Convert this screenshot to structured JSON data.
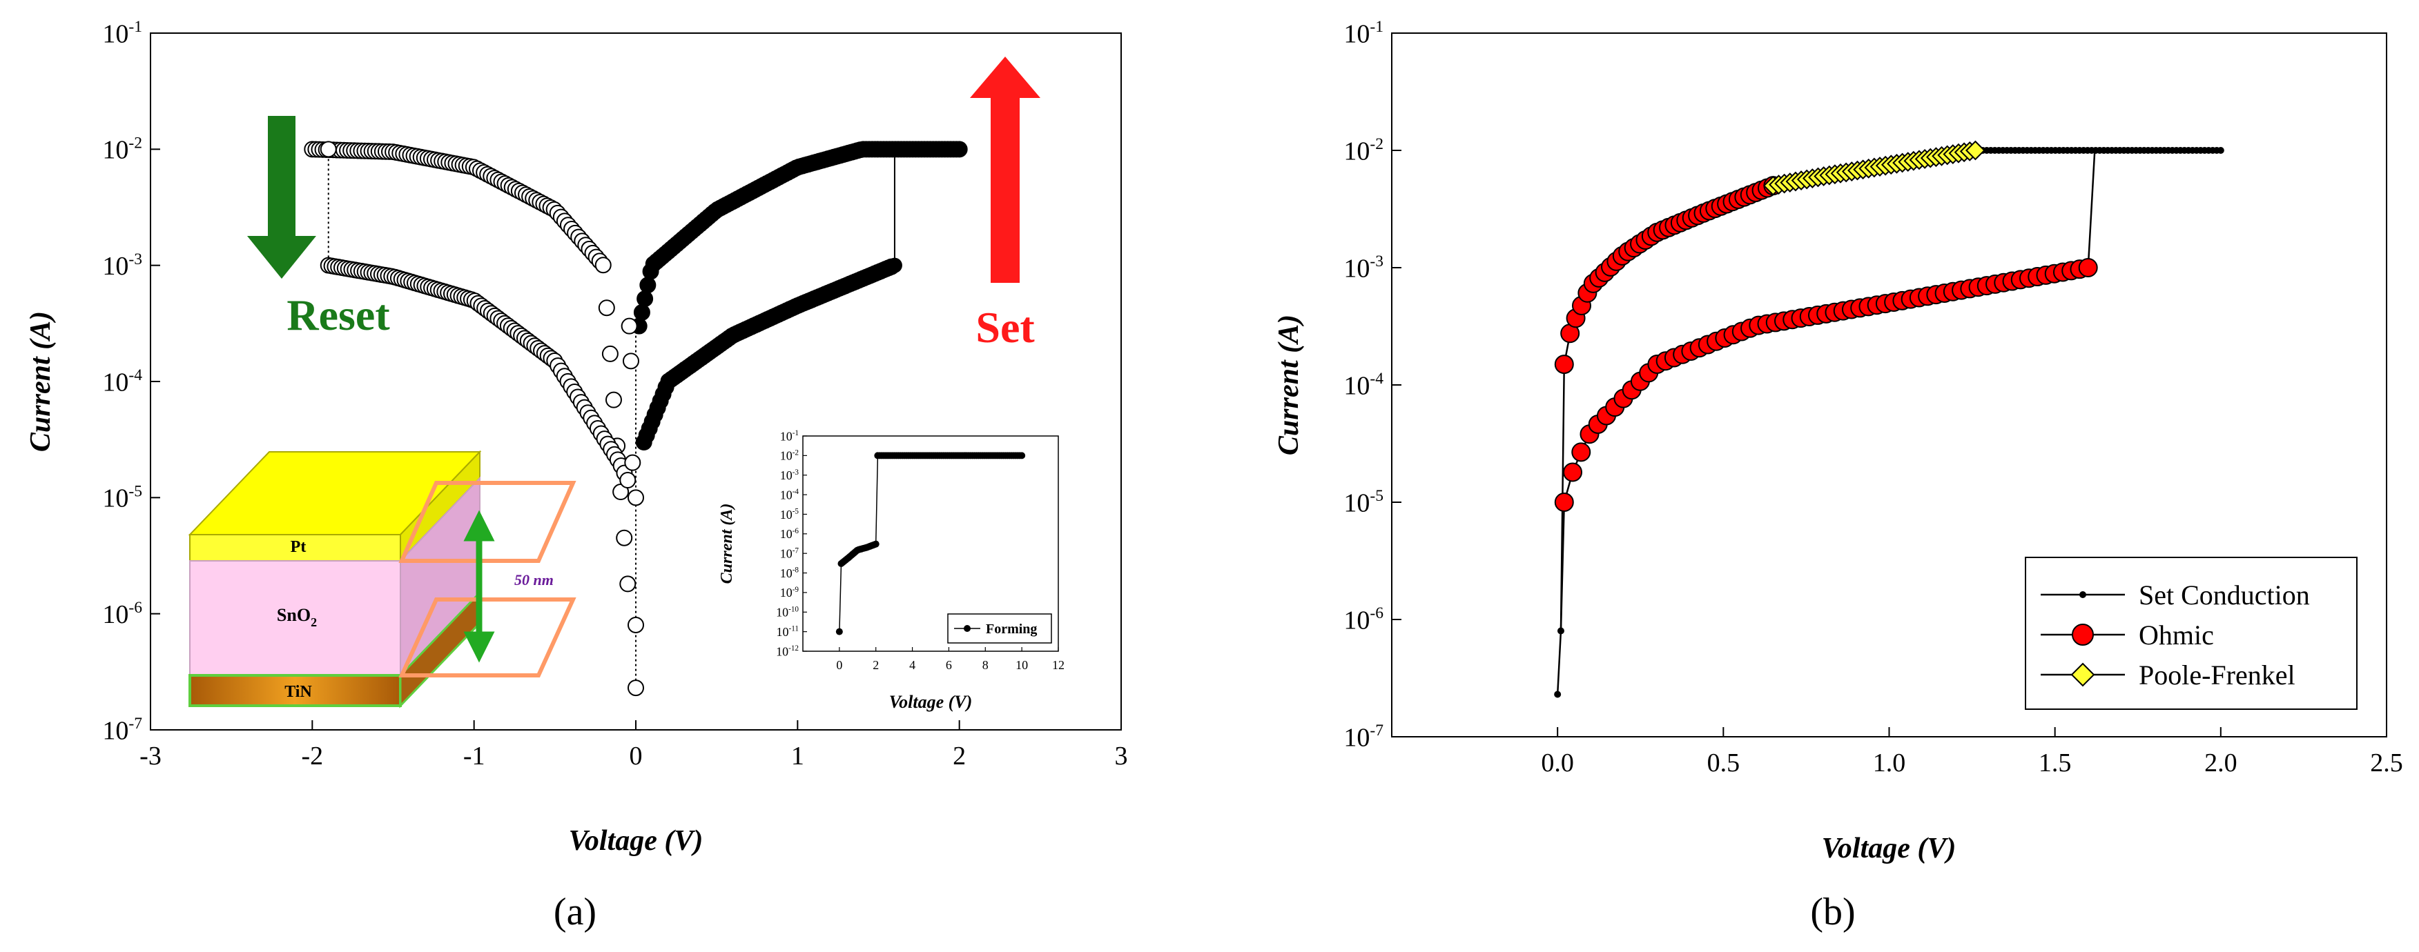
{
  "panels": {
    "a": {
      "label": "(a)"
    },
    "b": {
      "label": "(b)"
    }
  },
  "colors": {
    "reset_green": "#1a7a1a",
    "set_red": "#ff1a1a",
    "ohmic_red": "#ff0000",
    "pf_yellow": "#ffff33",
    "pt_yellow": "#ffff00",
    "sno2_pink": "#ffccee",
    "tin_brown": "#c87a10",
    "thickness_purple": "#6a1b9a"
  },
  "annotations": {
    "reset": "Reset",
    "set": "Set",
    "thickness": "50 nm",
    "layer_top": "Pt",
    "layer_mid": "SnO",
    "layer_mid_sub": "2",
    "layer_bottom": "TiN"
  },
  "chart_data": [
    {
      "id": "a-main",
      "type": "scatter",
      "title": "",
      "xlabel": "Voltage (V)",
      "ylabel": "Current (A)",
      "xlim": [
        -3,
        3
      ],
      "ylim": [
        1e-07,
        0.1
      ],
      "yscale": "log",
      "x_ticks": [
        -3,
        -2,
        -1,
        0,
        1,
        2,
        3
      ],
      "x_tick_labels": [
        "-3",
        "-2",
        "-1",
        "0",
        "1",
        "2",
        "3"
      ],
      "y_ticks": [
        1e-07,
        1e-06,
        1e-05,
        0.0001,
        0.001,
        0.01,
        0.1
      ],
      "y_tick_labels": [
        "10-7",
        "10-6",
        "10-5",
        "10-4",
        "10-3",
        "10-2",
        "10-1"
      ],
      "grid": false,
      "series": [
        {
          "marker": "filled-circle",
          "description_points": [
            [
              0,
              2.3e-07
            ],
            [
              0.02,
              0.0003
            ],
            [
              0.1,
              0.001
            ],
            [
              0.5,
              0.003
            ],
            [
              1.0,
              0.007
            ],
            [
              1.4,
              0.01
            ],
            [
              2.0,
              0.01
            ]
          ]
        },
        {
          "marker": "filled-circle",
          "description_points": [
            [
              0,
              8e-07
            ],
            [
              0.05,
              3e-05
            ],
            [
              0.2,
              0.0001
            ],
            [
              0.6,
              0.00025
            ],
            [
              1.0,
              0.00045
            ],
            [
              1.6,
              0.001
            ],
            [
              1.6,
              0.01
            ]
          ]
        },
        {
          "marker": "open-circle",
          "description_points": [
            [
              -2.0,
              0.01
            ],
            [
              -1.5,
              0.0095
            ],
            [
              -1.0,
              0.007
            ],
            [
              -0.5,
              0.003
            ],
            [
              -0.2,
              0.001
            ],
            [
              0,
              2.2e-07
            ]
          ]
        },
        {
          "marker": "open-circle",
          "description_points": [
            [
              -1.9,
              0.001
            ],
            [
              -1.5,
              0.0008
            ],
            [
              -1.0,
              0.0005
            ],
            [
              -0.5,
              0.00015
            ],
            [
              -0.1,
              2e-05
            ],
            [
              0,
              1e-05
            ]
          ]
        }
      ]
    },
    {
      "id": "a-inset",
      "type": "line",
      "title": "",
      "xlabel": "Voltage (V)",
      "ylabel": "Current (A)",
      "xlim": [
        -2,
        12
      ],
      "ylim": [
        1e-12,
        0.1
      ],
      "yscale": "log",
      "x_ticks": [
        0,
        2,
        4,
        6,
        8,
        10,
        12
      ],
      "x_tick_labels": [
        "0",
        "2",
        "4",
        "6",
        "8",
        "10",
        "12"
      ],
      "y_ticks": [
        1e-12,
        1e-11,
        1e-10,
        1e-09,
        1e-08,
        1e-07,
        1e-06,
        1e-05,
        0.0001,
        0.001,
        0.01,
        0.1
      ],
      "y_tick_labels": [
        "10-12",
        "10-11",
        "10-10",
        "10-9",
        "10-8",
        "10-7",
        "10-6",
        "10-5",
        "10-4",
        "10-3",
        "10-2",
        "10-1"
      ],
      "legend": {
        "position": "bottom-right",
        "entries": [
          "Forming"
        ]
      },
      "series": [
        {
          "name": "Forming",
          "points": [
            [
              0,
              1e-11
            ],
            [
              0.1,
              3e-08
            ],
            [
              0.5,
              6e-08
            ],
            [
              1.0,
              1.5e-07
            ],
            [
              1.5,
              2e-07
            ],
            [
              2.0,
              3e-07
            ],
            [
              2.1,
              0.01
            ],
            [
              4,
              0.01
            ],
            [
              6,
              0.01
            ],
            [
              8,
              0.01
            ],
            [
              10,
              0.01
            ]
          ]
        }
      ]
    },
    {
      "id": "b-main",
      "type": "scatter",
      "title": "",
      "xlabel": "Voltage (V)",
      "ylabel": "Current (A)",
      "xlim": [
        -0.5,
        2.5
      ],
      "ylim": [
        1e-07,
        0.1
      ],
      "yscale": "log",
      "x_ticks": [
        0.0,
        0.5,
        1.0,
        1.5,
        2.0,
        2.5
      ],
      "x_tick_labels": [
        "0.0",
        "0.5",
        "1.0",
        "1.5",
        "2.0",
        "2.5"
      ],
      "y_ticks": [
        1e-07,
        1e-06,
        1e-05,
        0.0001,
        0.001,
        0.01,
        0.1
      ],
      "y_tick_labels": [
        "10-7",
        "10-6",
        "10-5",
        "10-4",
        "10-3",
        "10-2",
        "10-1"
      ],
      "legend": {
        "position": "bottom-right",
        "entries": [
          "Set Conduction",
          "Ohmic",
          "Poole-Frenkel"
        ]
      },
      "series": [
        {
          "name": "Set Conduction",
          "points": [
            [
              0,
              2.3e-07
            ],
            [
              0.01,
              8e-07
            ],
            [
              0.02,
              0.00015
            ],
            [
              1.26,
              0.01
            ],
            [
              1.3,
              0.01
            ],
            [
              1.6,
              0.01
            ],
            [
              2.0,
              0.01
            ]
          ]
        },
        {
          "name": "Ohmic",
          "points_upper": [
            [
              0.02,
              0.00015
            ],
            [
              0.04,
              0.0003
            ],
            [
              0.1,
              0.0007
            ],
            [
              0.2,
              0.0013
            ],
            [
              0.3,
              0.002
            ],
            [
              0.45,
              0.003
            ],
            [
              0.65,
              0.005
            ]
          ],
          "points_lower": [
            [
              0.02,
              1e-05
            ],
            [
              0.05,
              2e-05
            ],
            [
              0.1,
              4e-05
            ],
            [
              0.3,
              0.00015
            ],
            [
              0.6,
              0.00032
            ],
            [
              1.0,
              0.0005
            ],
            [
              1.6,
              0.001
            ]
          ]
        },
        {
          "name": "Poole-Frenkel",
          "points": [
            [
              0.65,
              0.005
            ],
            [
              0.8,
              0.006
            ],
            [
              1.0,
              0.0075
            ],
            [
              1.26,
              0.01
            ]
          ]
        }
      ]
    }
  ]
}
